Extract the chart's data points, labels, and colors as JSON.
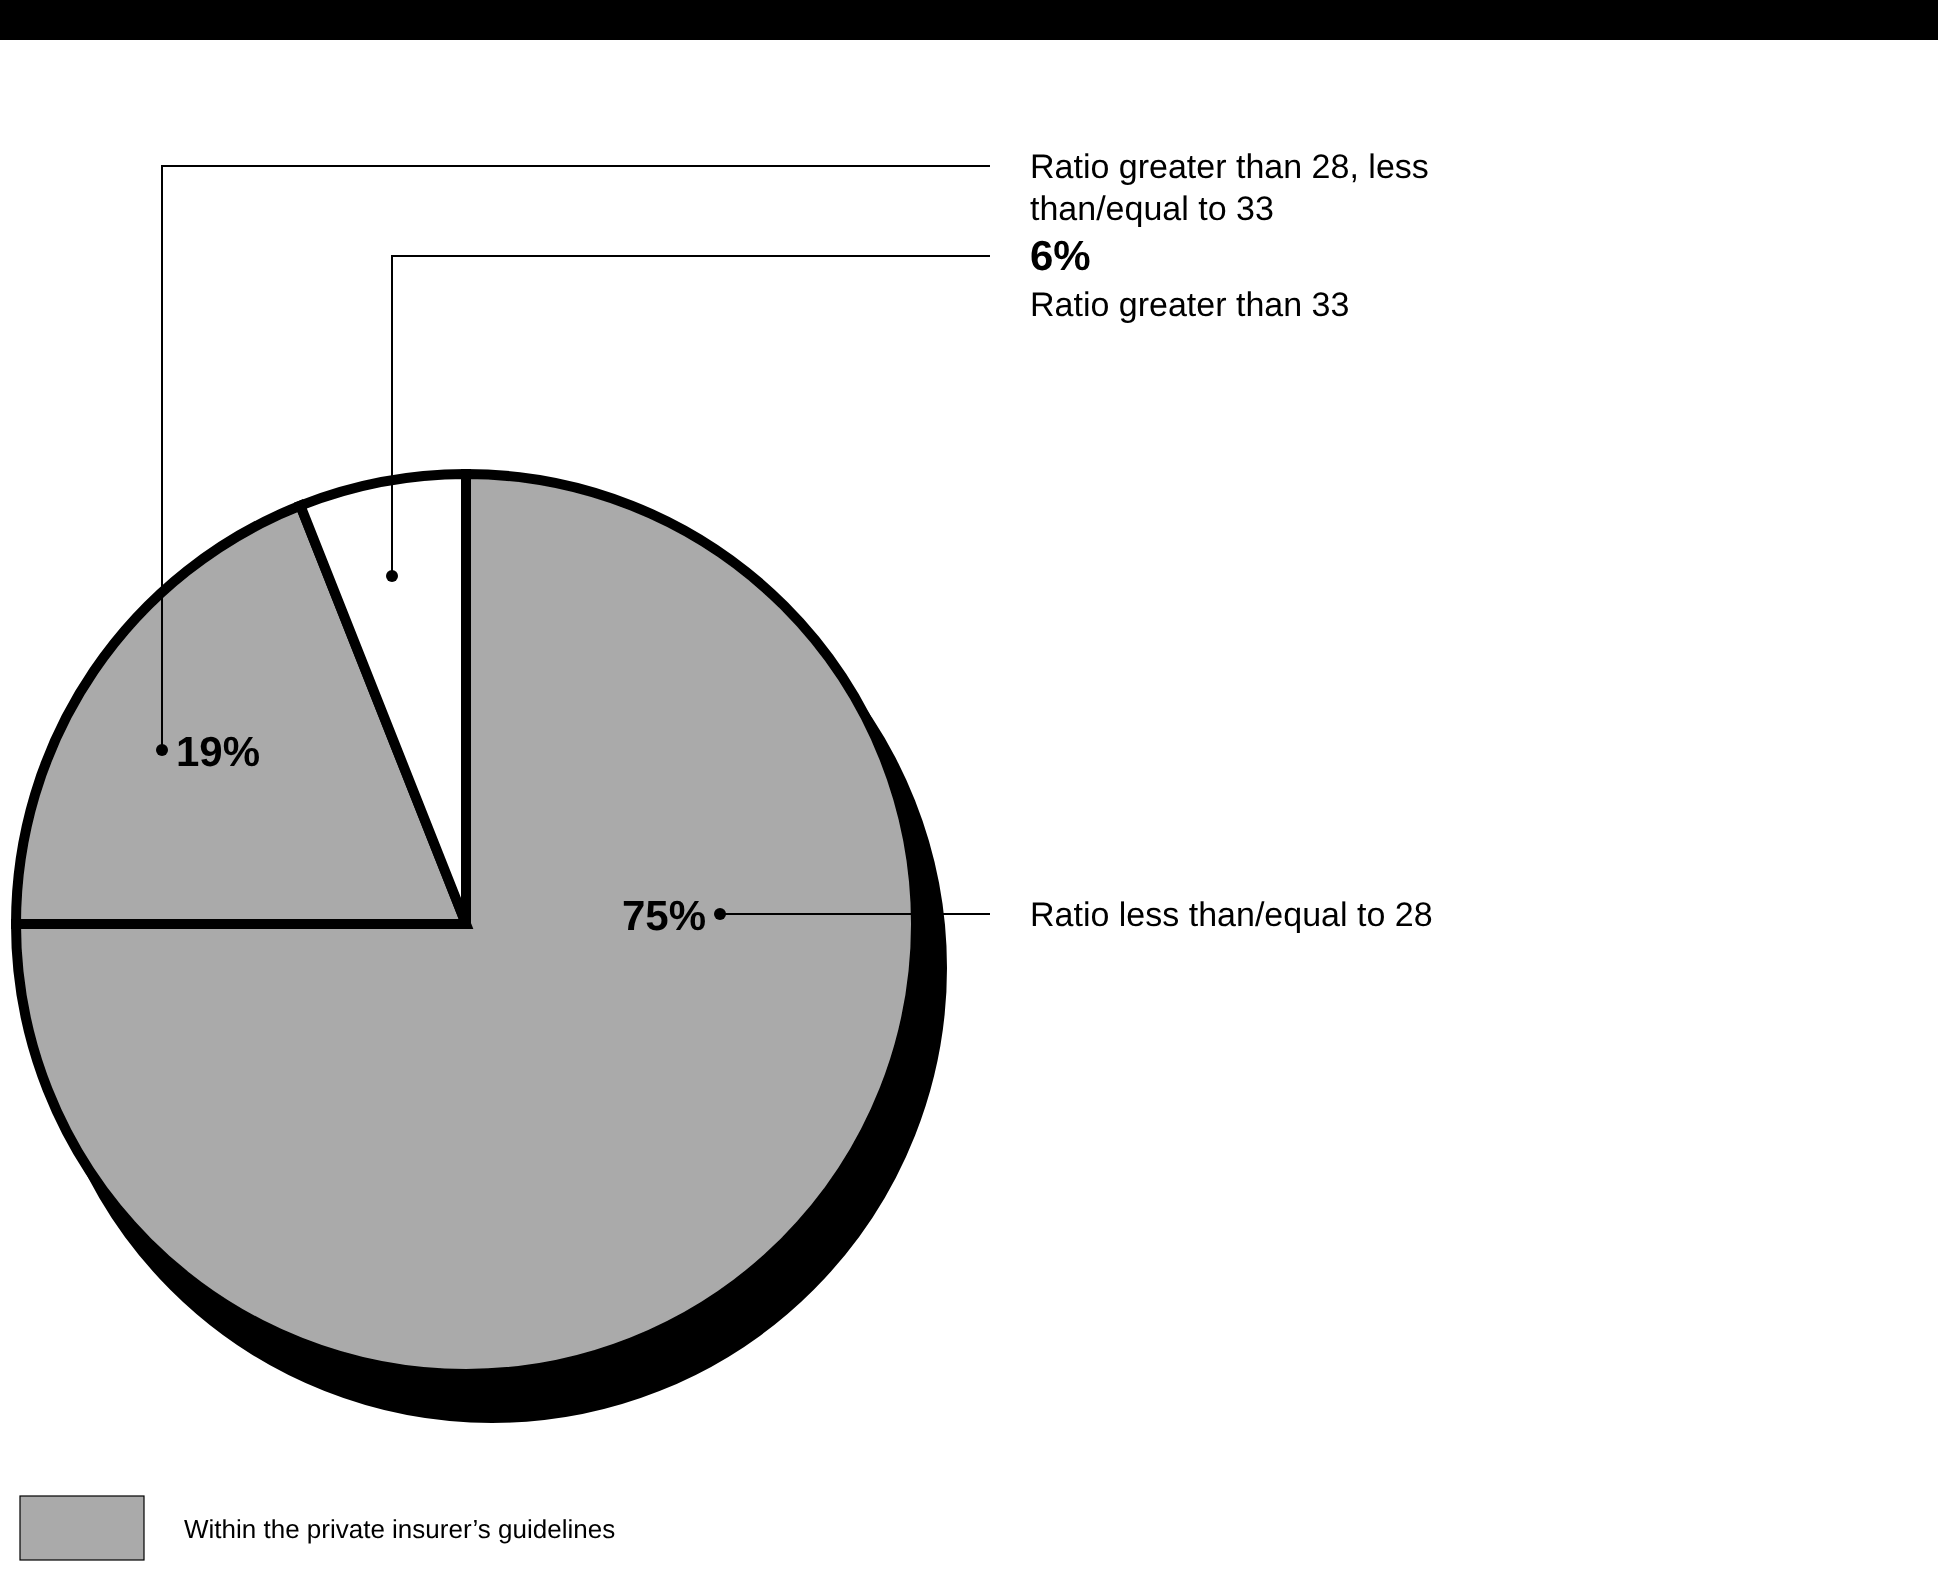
{
  "chart_data": {
    "type": "pie",
    "categories": [
      "Ratio less than/equal to 28",
      "Ratio greater than 28, less than/equal to 33",
      "Ratio greater than 33"
    ],
    "values": [
      75,
      19,
      6
    ],
    "colors": [
      "#aaaaaa",
      "#aaaaaa",
      "#ffffff"
    ],
    "value_labels": [
      "75%",
      "19%",
      "6%"
    ],
    "annotations": [
      "Within the private insurer’s guidelines"
    ]
  }
}
